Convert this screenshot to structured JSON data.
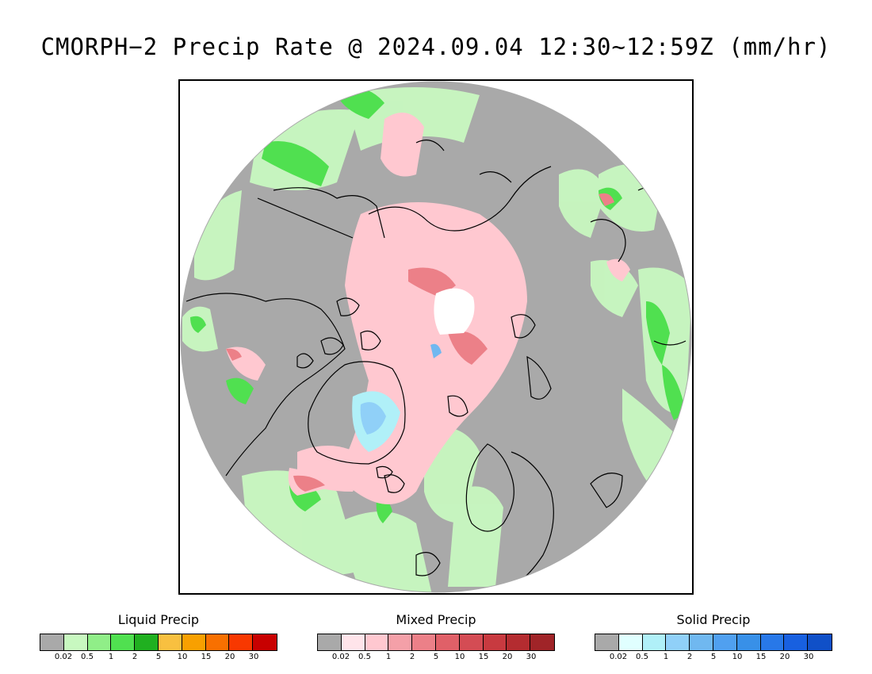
{
  "title": "CMORPH−2 Precip Rate @ 2024.09.04 12:30~12:59Z (mm/hr)",
  "legends": [
    {
      "title": "Liquid Precip",
      "colors": [
        "#a9a9a9",
        "#c8f8c0",
        "#90ee88",
        "#50e050",
        "#20b020",
        "#f8c040",
        "#f8a000",
        "#f87000",
        "#f83800",
        "#c80000"
      ],
      "ticks": [
        "0.02",
        "0.5",
        "1",
        "2",
        "5",
        "10",
        "15",
        "20",
        "30"
      ]
    },
    {
      "title": "Mixed Precip",
      "colors": [
        "#a9a9a9",
        "#ffe4ea",
        "#ffc8d0",
        "#f4a0a8",
        "#ec8088",
        "#e06068",
        "#d44c54",
        "#c83a40",
        "#b42c30",
        "#a02428"
      ],
      "ticks": [
        "0.02",
        "0.5",
        "1",
        "2",
        "5",
        "10",
        "15",
        "20",
        "30"
      ]
    },
    {
      "title": "Solid Precip",
      "colors": [
        "#a9a9a9",
        "#e0ffff",
        "#b0f0f8",
        "#90d0f8",
        "#70b8f0",
        "#50a0f0",
        "#3890e8",
        "#2878e8",
        "#1860e0",
        "#1050c8"
      ],
      "ticks": [
        "0.02",
        "0.5",
        "1",
        "2",
        "5",
        "10",
        "15",
        "20",
        "30"
      ]
    }
  ]
}
